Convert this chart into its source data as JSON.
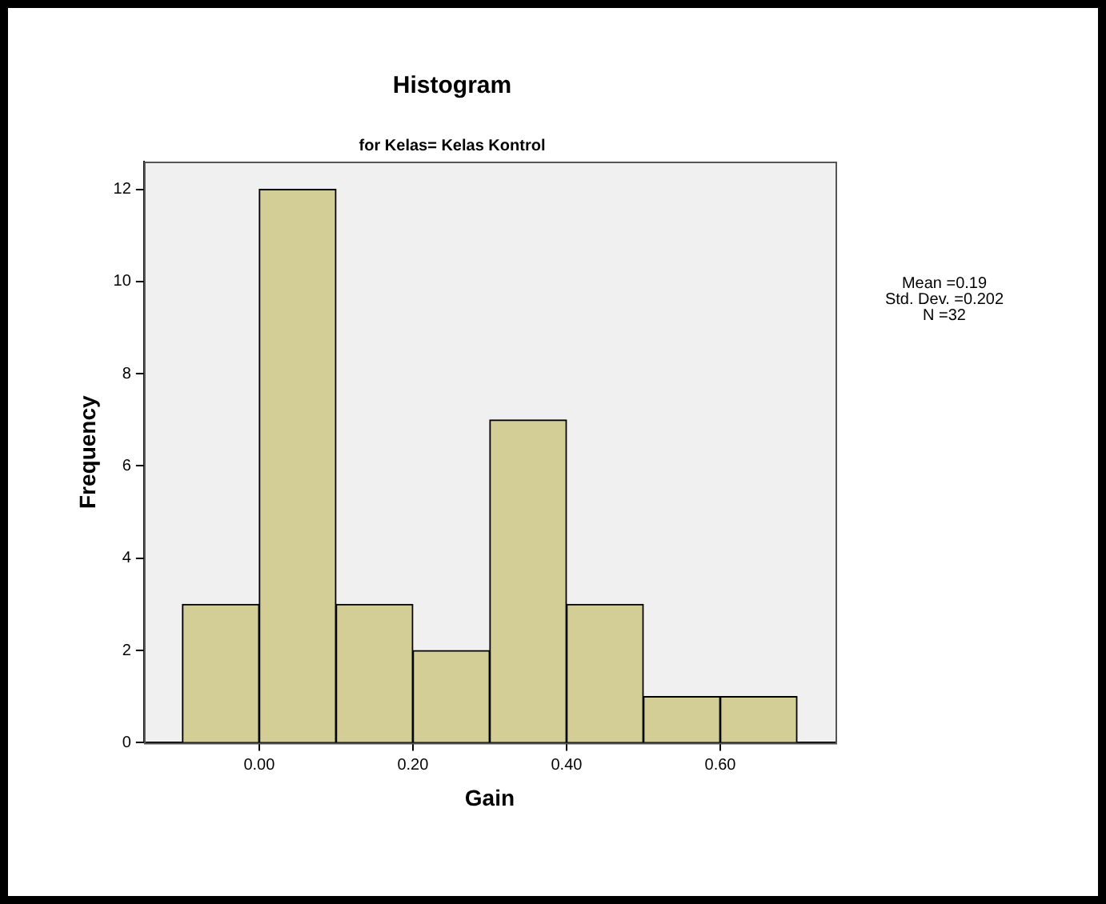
{
  "chart_data": {
    "type": "histogram",
    "title": "Histogram",
    "subtitle": "for Kelas= Kelas Kontrol",
    "xlabel": "Gain",
    "ylabel": "Frequency",
    "bins": [
      -0.1,
      0,
      0.1,
      0.2,
      0.3,
      0.4,
      0.5,
      0.6,
      0.7
    ],
    "values": [
      3,
      12,
      3,
      2,
      7,
      3,
      1,
      1
    ],
    "color": "#d3cd96",
    "xlim": [
      -0.15,
      0.75
    ],
    "xticks": [
      {
        "value": 0,
        "label": "0.00"
      },
      {
        "value": 0.2,
        "label": "0.20"
      },
      {
        "value": 0.4,
        "label": "0.40"
      },
      {
        "value": 0.6,
        "label": "0.60"
      }
    ],
    "ylim": [
      0,
      12.6
    ],
    "yticks": [
      0,
      2,
      4,
      6,
      8,
      10,
      12
    ],
    "grid": false,
    "legend": false,
    "annotations": [
      "Mean =0.19",
      "Std. Dev. =0.202",
      "N =32"
    ]
  }
}
